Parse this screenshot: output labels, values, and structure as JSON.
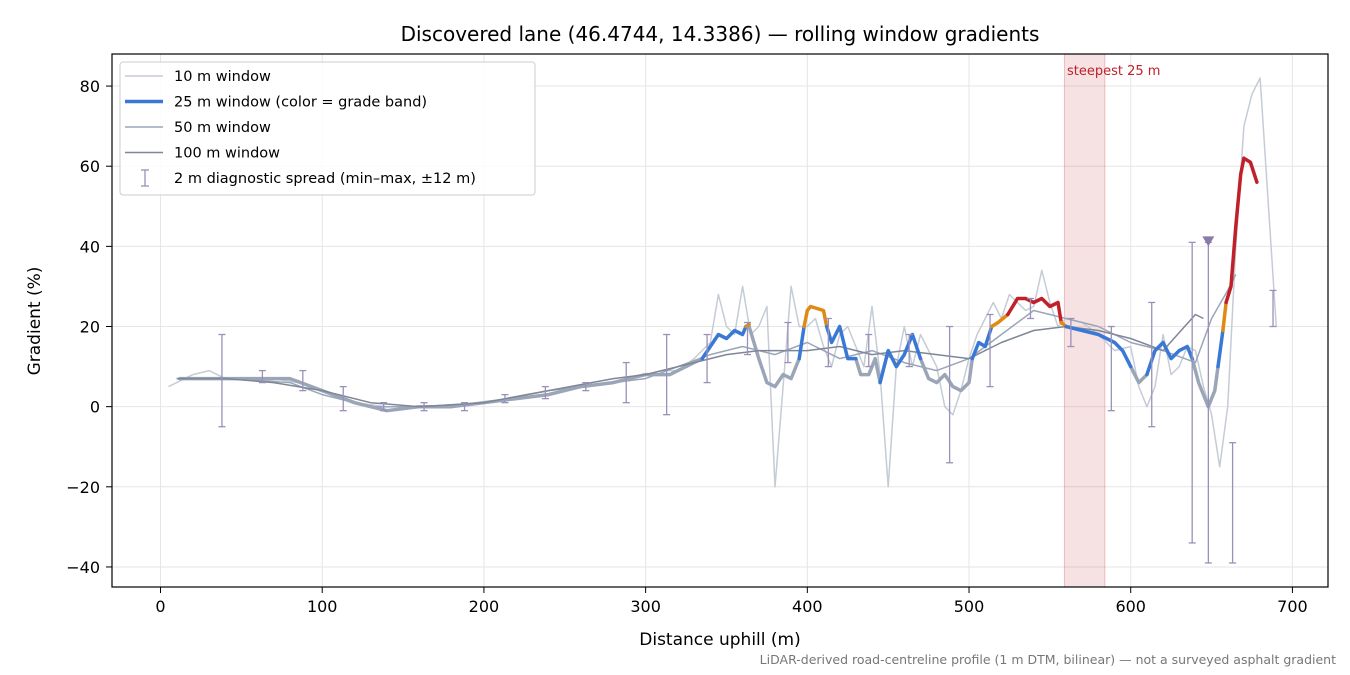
{
  "chart_data": {
    "type": "line",
    "title": "Discovered lane (46.4744, 14.3386) — rolling window gradients",
    "xlabel": "Distance uphill (m)",
    "ylabel": "Gradient (%)",
    "xlim": [
      -30,
      722
    ],
    "ylim": [
      -45,
      88
    ],
    "xticks": [
      0,
      100,
      200,
      300,
      400,
      500,
      600,
      700
    ],
    "yticks": [
      -40,
      -20,
      0,
      20,
      40,
      60,
      80
    ],
    "ytick_labels": [
      "−40",
      "−20",
      "0",
      "20",
      "40",
      "60",
      "80"
    ],
    "grid": true,
    "legend_position": "upper-left",
    "footnote": "LiDAR-derived road-centreline profile (1 m DTM, bilinear) — not a surveyed asphalt gradient",
    "annotation": {
      "text": "steepest 25 m",
      "x_range": [
        559,
        584
      ],
      "color": "#c0202a"
    },
    "marker": {
      "x": 648,
      "y": 41,
      "color": "#8a7aa8"
    },
    "grade_band_colors": {
      "easy": "#3a78d6",
      "moderate": "#e08a14",
      "steep": "#c0202a"
    },
    "legend": [
      {
        "label": "10 m window",
        "color": "#c5ccd6",
        "width": 1.5,
        "kind": "line"
      },
      {
        "label": "25 m window (color = grade band)",
        "color": "#3a78d6",
        "width": 3.5,
        "kind": "line"
      },
      {
        "label": "50 m window",
        "color": "#9aa6b8",
        "width": 1.5,
        "kind": "line"
      },
      {
        "label": "100 m window",
        "color": "#7f8696",
        "width": 1.5,
        "kind": "line"
      },
      {
        "label": "2 m diagnostic spread (min–max, ±12 m)",
        "color": "#9a90b8",
        "width": 1.5,
        "kind": "errorbar"
      }
    ],
    "series": [
      {
        "name": "10 m window",
        "color": "#c5ccd6",
        "x": [
          5,
          20,
          30,
          40,
          55,
          70,
          85,
          100,
          120,
          140,
          160,
          180,
          200,
          220,
          240,
          260,
          280,
          300,
          310,
          320,
          330,
          340,
          345,
          350,
          355,
          360,
          365,
          370,
          375,
          380,
          385,
          390,
          395,
          400,
          405,
          410,
          415,
          420,
          425,
          430,
          435,
          440,
          445,
          450,
          455,
          460,
          465,
          470,
          475,
          480,
          485,
          490,
          495,
          500,
          505,
          510,
          515,
          520,
          525,
          530,
          535,
          540,
          545,
          550,
          555,
          560,
          570,
          580,
          590,
          600,
          605,
          610,
          615,
          620,
          625,
          630,
          635,
          640,
          645,
          650,
          655,
          660,
          665,
          670,
          675,
          680,
          690
        ],
        "y": [
          5,
          8,
          9,
          7,
          7,
          7,
          6,
          4,
          1,
          0,
          0,
          0,
          1,
          2,
          3,
          5,
          6,
          8,
          9,
          9,
          12,
          16,
          28,
          20,
          18,
          30,
          18,
          20,
          25,
          -20,
          5,
          30,
          20,
          20,
          22,
          15,
          10,
          18,
          20,
          15,
          10,
          25,
          8,
          -20,
          10,
          20,
          10,
          18,
          14,
          10,
          0,
          -2,
          4,
          12,
          18,
          22,
          26,
          22,
          28,
          26,
          24,
          25,
          34,
          26,
          20,
          22,
          21,
          18,
          14,
          15,
          5,
          0,
          5,
          18,
          8,
          10,
          15,
          14,
          5,
          -2,
          -15,
          0,
          40,
          70,
          78,
          82,
          20
        ],
        "width": 1.5
      },
      {
        "name": "50 m window",
        "color": "#9aa6b8",
        "x": [
          10,
          40,
          80,
          100,
          130,
          160,
          200,
          240,
          280,
          300,
          320,
          340,
          360,
          380,
          400,
          420,
          440,
          460,
          480,
          500,
          520,
          540,
          560,
          580,
          600,
          620,
          640,
          650,
          660,
          665
        ],
        "y": [
          7,
          7,
          6,
          3,
          0,
          0,
          1,
          4,
          6,
          7,
          10,
          13,
          15,
          13,
          16,
          12,
          14,
          11,
          9,
          12,
          18,
          24,
          22,
          20,
          16,
          14,
          11,
          22,
          29,
          33
        ],
        "width": 1.5
      },
      {
        "name": "100 m window",
        "color": "#7f8696",
        "x": [
          10,
          40,
          70,
          100,
          130,
          160,
          200,
          240,
          280,
          300,
          320,
          350,
          370,
          400,
          420,
          440,
          460,
          480,
          500,
          520,
          540,
          560,
          580,
          600,
          620,
          640,
          645
        ],
        "y": [
          7,
          7,
          6,
          4,
          1,
          0,
          1,
          4,
          7,
          8,
          10,
          13,
          14,
          14,
          15,
          13,
          14,
          13,
          12,
          16,
          19,
          20,
          19,
          17,
          14,
          23,
          22
        ],
        "width": 1.5
      },
      {
        "name": "25 m window (color = grade band)",
        "color": "#3a78d6",
        "width": 3.5,
        "segments": [
          {
            "band": "gray",
            "color": "#9aa6b8",
            "x": [
              12,
              30,
              50,
              80,
              100,
              120,
              140,
              160,
              180,
              200,
              220,
              240,
              260,
              280,
              300,
              315,
              325,
              335
            ],
            "y": [
              7,
              7,
              7,
              7,
              4,
              1,
              -1,
              0,
              0,
              1,
              2,
              3,
              5,
              6,
              8,
              8,
              10,
              12
            ]
          },
          {
            "band": "easy",
            "color": "#3a78d6",
            "x": [
              335,
              340,
              345,
              350,
              355,
              360,
              362
            ],
            "y": [
              12,
              15,
              18,
              17,
              19,
              18,
              20
            ]
          },
          {
            "band": "moderate",
            "color": "#e08a14",
            "x": [
              362,
              364
            ],
            "y": [
              20,
              20.5
            ]
          },
          {
            "band": "gray",
            "color": "#9aa6b8",
            "x": [
              364,
              370,
              375,
              380,
              385,
              390,
              395
            ],
            "y": [
              20,
              12,
              6,
              5,
              8,
              7,
              12
            ]
          },
          {
            "band": "easy",
            "color": "#3a78d6",
            "x": [
              395,
              398
            ],
            "y": [
              12,
              20
            ]
          },
          {
            "band": "moderate",
            "color": "#e08a14",
            "x": [
              398,
              400,
              402,
              410,
              412
            ],
            "y": [
              20,
              24,
              25,
              24,
              20
            ]
          },
          {
            "band": "easy",
            "color": "#3a78d6",
            "x": [
              412,
              415,
              420,
              425,
              430
            ],
            "y": [
              20,
              16,
              20,
              12,
              12
            ]
          },
          {
            "band": "gray",
            "color": "#9aa6b8",
            "x": [
              430,
              433,
              438,
              442,
              445
            ],
            "y": [
              12,
              8,
              8,
              12,
              6
            ]
          },
          {
            "band": "easy",
            "color": "#3a78d6",
            "x": [
              445,
              450,
              455,
              460,
              465,
              470
            ],
            "y": [
              6,
              14,
              10,
              13,
              18,
              12
            ]
          },
          {
            "band": "gray",
            "color": "#9aa6b8",
            "x": [
              470,
              475,
              480,
              485,
              490,
              495,
              500,
              502
            ],
            "y": [
              12,
              7,
              6,
              8,
              5,
              4,
              6,
              12
            ]
          },
          {
            "band": "easy",
            "color": "#3a78d6",
            "x": [
              502,
              506,
              510,
              514
            ],
            "y": [
              12,
              16,
              15,
              20
            ]
          },
          {
            "band": "moderate",
            "color": "#e08a14",
            "x": [
              514,
              518,
              524
            ],
            "y": [
              20,
              21,
              23
            ]
          },
          {
            "band": "steep",
            "color": "#c0202a",
            "x": [
              524,
              530,
              535,
              540,
              545,
              550,
              555,
              557
            ],
            "y": [
              23,
              27,
              27,
              26,
              27,
              25,
              26,
              21
            ]
          },
          {
            "band": "moderate",
            "color": "#e08a14",
            "x": [
              557,
              560
            ],
            "y": [
              21,
              20
            ]
          },
          {
            "band": "easy",
            "color": "#3a78d6",
            "x": [
              560,
              570,
              580,
              590,
              595,
              600
            ],
            "y": [
              20,
              19,
              18,
              16,
              14,
              10
            ]
          },
          {
            "band": "gray",
            "color": "#9aa6b8",
            "x": [
              600,
              605,
              610
            ],
            "y": [
              10,
              6,
              8
            ]
          },
          {
            "band": "easy",
            "color": "#3a78d6",
            "x": [
              610,
              615,
              620,
              625,
              630,
              635,
              638
            ],
            "y": [
              8,
              14,
              16,
              12,
              14,
              15,
              12
            ]
          },
          {
            "band": "gray",
            "color": "#9aa6b8",
            "x": [
              638,
              642,
              648,
              652,
              654
            ],
            "y": [
              12,
              6,
              0,
              4,
              10
            ]
          },
          {
            "band": "easy",
            "color": "#3a78d6",
            "x": [
              654,
              657
            ],
            "y": [
              10,
              19
            ]
          },
          {
            "band": "moderate",
            "color": "#e08a14",
            "x": [
              657,
              659
            ],
            "y": [
              19,
              26
            ]
          },
          {
            "band": "steep",
            "color": "#c0202a",
            "x": [
              659,
              662,
              665,
              668,
              670,
              674,
              678
            ],
            "y": [
              26,
              30,
              45,
              58,
              62,
              61,
              56
            ]
          }
        ]
      }
    ],
    "errorbars": {
      "name": "2 m diagnostic spread (min–max, ±12 m)",
      "color": "#9a90b8",
      "items": [
        {
          "x": 38,
          "ymin": -5,
          "ymax": 18
        },
        {
          "x": 63,
          "ymin": 6,
          "ymax": 9
        },
        {
          "x": 88,
          "ymin": 4,
          "ymax": 9
        },
        {
          "x": 113,
          "ymin": -1,
          "ymax": 5
        },
        {
          "x": 138,
          "ymin": -1,
          "ymax": 1
        },
        {
          "x": 163,
          "ymin": -1,
          "ymax": 1
        },
        {
          "x": 188,
          "ymin": -1,
          "ymax": 1
        },
        {
          "x": 213,
          "ymin": 1,
          "ymax": 3
        },
        {
          "x": 238,
          "ymin": 2,
          "ymax": 5
        },
        {
          "x": 263,
          "ymin": 4,
          "ymax": 6
        },
        {
          "x": 288,
          "ymin": 1,
          "ymax": 11
        },
        {
          "x": 313,
          "ymin": -2,
          "ymax": 18
        },
        {
          "x": 338,
          "ymin": 6,
          "ymax": 18
        },
        {
          "x": 363,
          "ymin": 13,
          "ymax": 21
        },
        {
          "x": 388,
          "ymin": 11,
          "ymax": 21
        },
        {
          "x": 413,
          "ymin": 10,
          "ymax": 22
        },
        {
          "x": 438,
          "ymin": 10,
          "ymax": 18
        },
        {
          "x": 463,
          "ymin": 10,
          "ymax": 18
        },
        {
          "x": 488,
          "ymin": -14,
          "ymax": 20
        },
        {
          "x": 513,
          "ymin": 5,
          "ymax": 23
        },
        {
          "x": 538,
          "ymin": 22,
          "ymax": 27
        },
        {
          "x": 563,
          "ymin": 15,
          "ymax": 22
        },
        {
          "x": 588,
          "ymin": -1,
          "ymax": 20
        },
        {
          "x": 613,
          "ymin": -5,
          "ymax": 26
        },
        {
          "x": 638,
          "ymin": -34,
          "ymax": 41
        },
        {
          "x": 648,
          "ymin": -39,
          "ymax": 41
        },
        {
          "x": 663,
          "ymin": -39,
          "ymax": -9
        },
        {
          "x": 688,
          "ymin": 20,
          "ymax": 29
        }
      ]
    }
  }
}
